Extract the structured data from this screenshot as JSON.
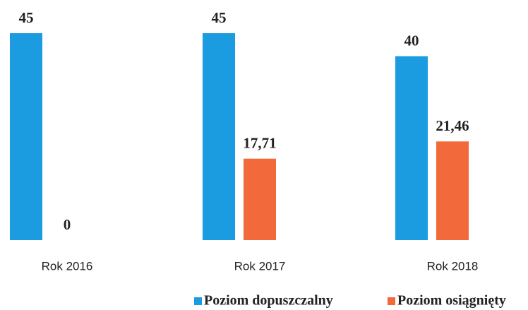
{
  "chart_data": {
    "type": "bar",
    "categories": [
      "Rok 2016",
      "Rok 2017",
      "Rok 2018"
    ],
    "series": [
      {
        "name": "Poziom dopuszczalny",
        "color": "#1b9be0",
        "values": [
          45,
          45,
          40
        ]
      },
      {
        "name": "Poziom osiągnięty",
        "color": "#f26a3b",
        "values": [
          0,
          17.71,
          21.46
        ],
        "value_labels": [
          "0",
          "17,71",
          "21,46"
        ]
      }
    ]
  }
}
